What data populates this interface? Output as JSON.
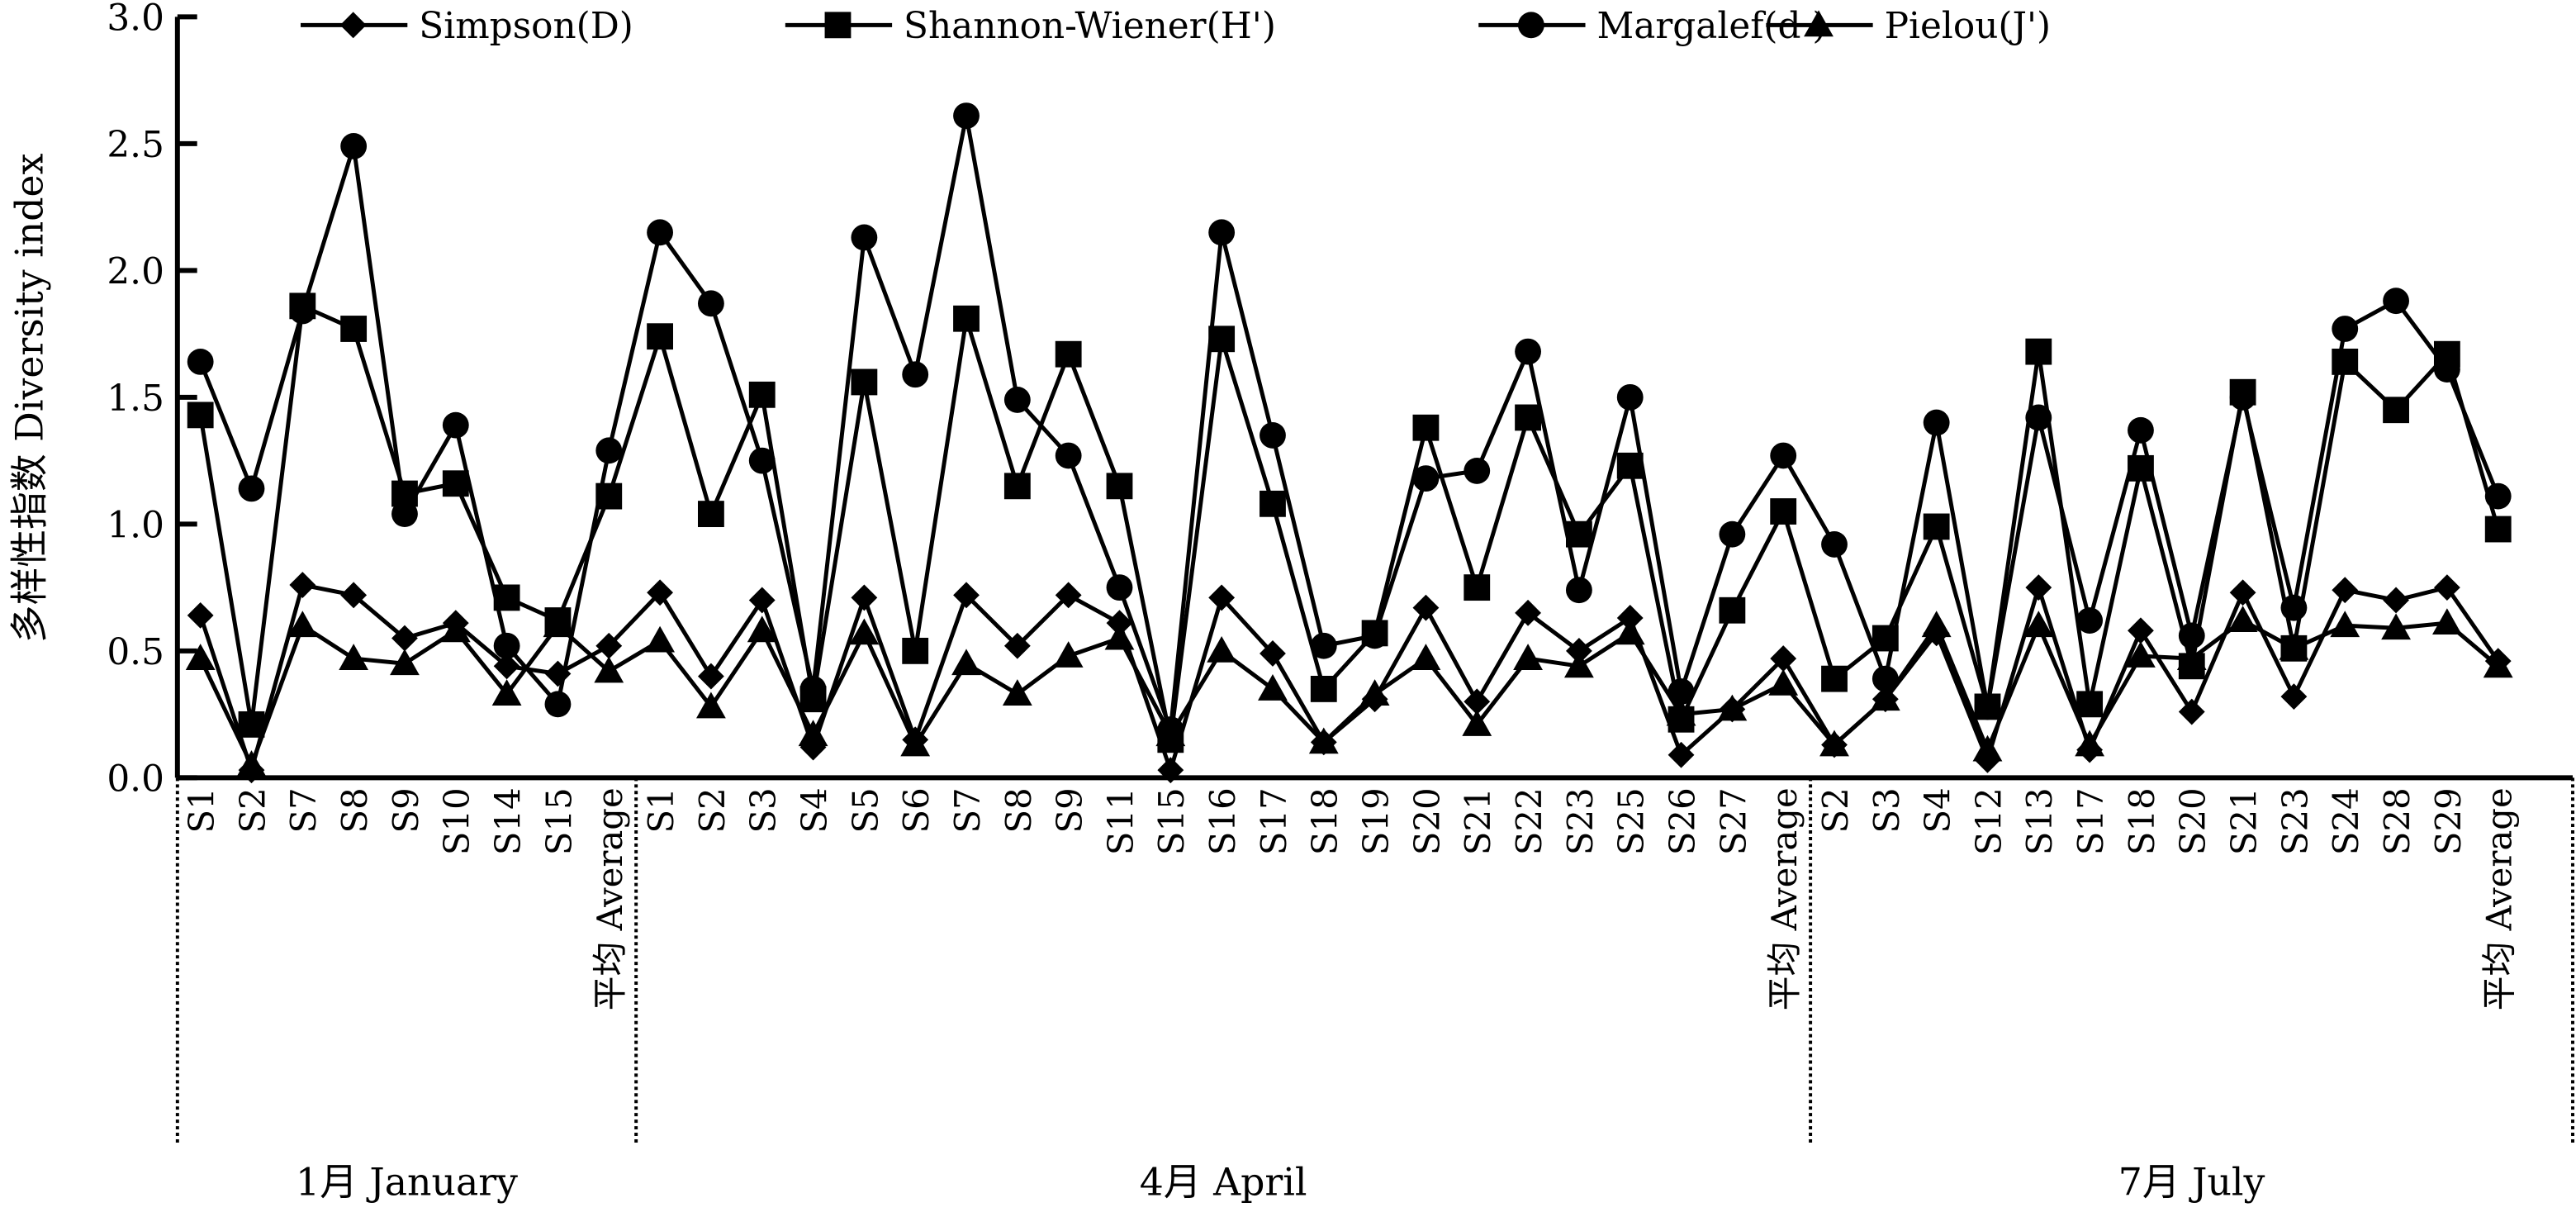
{
  "chart_data": {
    "type": "line",
    "title": "",
    "xlabel": "",
    "ylabel": "多样性指数 Diversity index",
    "ylim": [
      0,
      3.0
    ],
    "yticks": [
      "0.0",
      "0.5",
      "1.0",
      "1.5",
      "2.0",
      "2.5",
      "3.0"
    ],
    "legend_position": "top",
    "groups": [
      {
        "label": "1月 January",
        "categories": [
          "S1",
          "S2",
          "S7",
          "S8",
          "S9",
          "S10",
          "S14",
          "S15",
          "平均 Average"
        ]
      },
      {
        "label": "4月 April",
        "categories": [
          "S1",
          "S2",
          "S3",
          "S4",
          "S5",
          "S6",
          "S7",
          "S8",
          "S9",
          "S11",
          "S15",
          "S16",
          "S17",
          "S18",
          "S19",
          "S20",
          "S21",
          "S22",
          "S23",
          "S25",
          "S26",
          "S27",
          "平均 Average"
        ]
      },
      {
        "label": "7月 July",
        "categories": [
          "S2",
          "S3",
          "S4",
          "S12",
          "S13",
          "S17",
          "S18",
          "S20",
          "S21",
          "S23",
          "S24",
          "S28",
          "S29",
          "平均 Average"
        ]
      }
    ],
    "series": [
      {
        "name": "Simpson(D)",
        "marker": "diamond",
        "values": [
          0.64,
          0.03,
          0.76,
          0.72,
          0.55,
          0.61,
          0.44,
          0.41,
          0.52,
          0.73,
          0.4,
          0.7,
          0.12,
          0.71,
          0.15,
          0.72,
          0.52,
          0.72,
          0.61,
          0.03,
          0.71,
          0.49,
          0.14,
          0.31,
          0.67,
          0.3,
          0.65,
          0.5,
          0.63,
          0.09,
          0.27,
          0.47,
          0.13,
          0.31,
          0.57,
          0.07,
          0.75,
          0.11,
          0.58,
          0.26,
          0.73,
          0.32,
          0.74,
          0.7,
          0.75,
          0.46
        ]
      },
      {
        "name": "Shannon-Wiener(H')",
        "marker": "square",
        "values": [
          1.43,
          0.21,
          1.86,
          1.77,
          1.12,
          1.16,
          0.71,
          0.62,
          1.11,
          1.74,
          1.04,
          1.51,
          0.31,
          1.56,
          0.5,
          1.81,
          1.15,
          1.67,
          1.15,
          0.15,
          1.73,
          1.08,
          0.35,
          0.57,
          1.38,
          0.75,
          1.42,
          0.96,
          1.23,
          0.23,
          0.66,
          1.05,
          0.39,
          0.55,
          0.99,
          0.28,
          1.68,
          0.29,
          1.22,
          0.44,
          1.52,
          0.51,
          1.64,
          1.45,
          1.67,
          0.98
        ]
      },
      {
        "name": "Margalef(d )",
        "marker": "circle",
        "values": [
          1.64,
          1.14,
          1.84,
          2.49,
          1.04,
          1.39,
          0.52,
          0.29,
          1.29,
          2.15,
          1.87,
          1.25,
          0.35,
          2.13,
          1.59,
          2.61,
          1.49,
          1.27,
          0.75,
          0.19,
          2.15,
          1.35,
          0.52,
          0.56,
          1.18,
          1.21,
          1.68,
          0.74,
          1.5,
          0.34,
          0.96,
          1.27,
          0.92,
          0.39,
          1.4,
          0.28,
          1.42,
          0.62,
          1.37,
          0.56,
          1.5,
          0.67,
          1.77,
          1.88,
          1.61,
          1.11
        ]
      },
      {
        "name": "Pielou(J')",
        "marker": "triangle",
        "values": [
          0.47,
          0.05,
          0.6,
          0.47,
          0.45,
          0.58,
          0.33,
          0.6,
          0.42,
          0.54,
          0.28,
          0.58,
          0.17,
          0.57,
          0.13,
          0.45,
          0.33,
          0.48,
          0.55,
          0.17,
          0.5,
          0.35,
          0.14,
          0.33,
          0.47,
          0.21,
          0.47,
          0.44,
          0.57,
          0.25,
          0.27,
          0.37,
          0.13,
          0.31,
          0.6,
          0.11,
          0.6,
          0.13,
          0.48,
          0.47,
          0.62,
          0.51,
          0.6,
          0.59,
          0.61,
          0.44
        ]
      }
    ]
  }
}
